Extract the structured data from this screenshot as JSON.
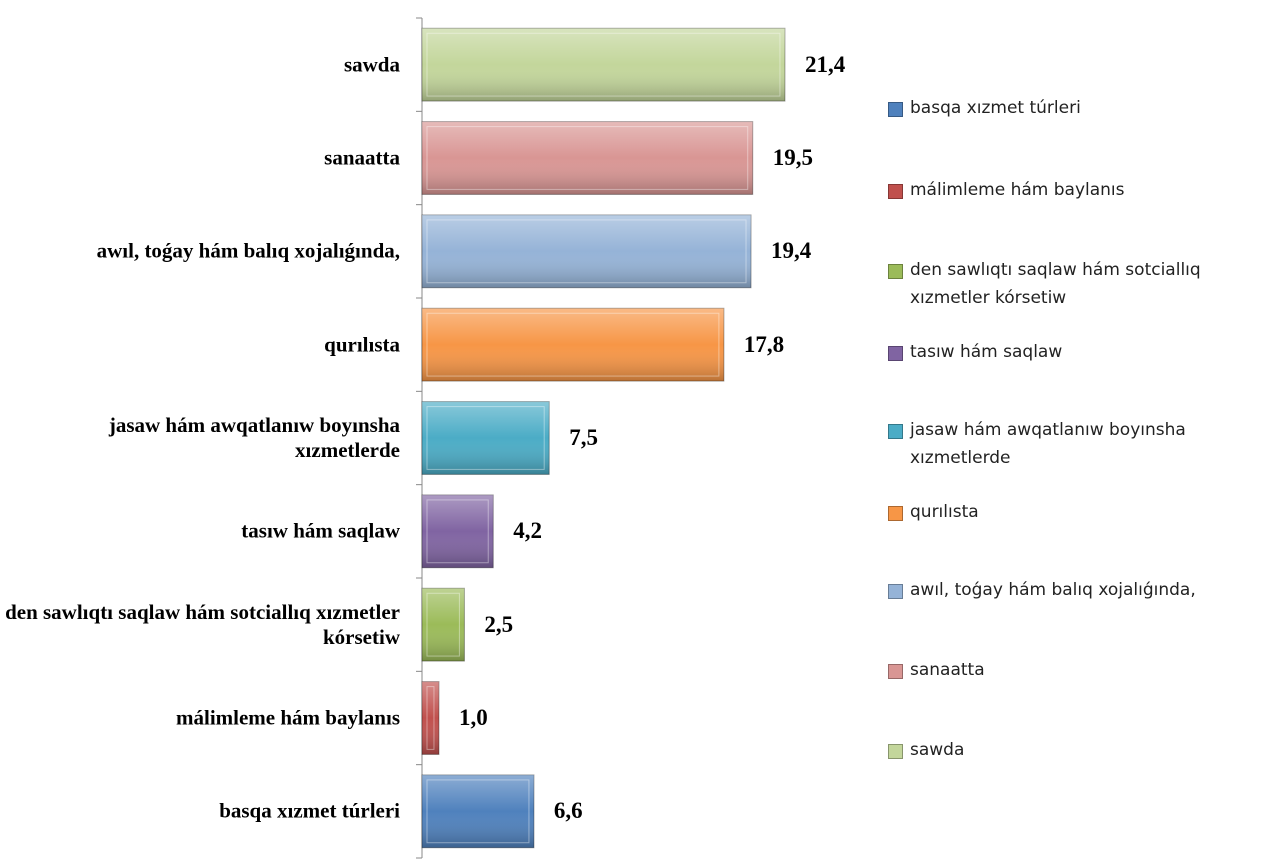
{
  "chart_data": {
    "type": "bar",
    "orientation": "horizontal",
    "categories": [
      "basqa xızmet túrleri",
      "málimleme hám baylanıs",
      "den sawlıqtı saqlaw hám sotciallıq xızmetler kórsetiw",
      "tasıw hám saqlaw",
      "jasaw hám awqatlanıw boyınsha xızmetlerde",
      "qurılısta",
      "awıl, toǵay hám balıq xojalıǵında,",
      "sanaatta",
      "sawda"
    ],
    "values": [
      6.6,
      1.0,
      2.5,
      4.2,
      7.5,
      17.8,
      19.4,
      19.5,
      21.4
    ],
    "value_labels": [
      "6,6",
      "1,0",
      "2,5",
      "4,2",
      "7,5",
      "17,8",
      "19,4",
      "19,5",
      "21,4"
    ],
    "colors": [
      "#4f81bd",
      "#c0504d",
      "#9bbb59",
      "#8064a2",
      "#4bacc6",
      "#f79646",
      "#95b3d7",
      "#d99694",
      "#c3d69b"
    ],
    "xlim": [
      0,
      24
    ],
    "legend": "right"
  }
}
